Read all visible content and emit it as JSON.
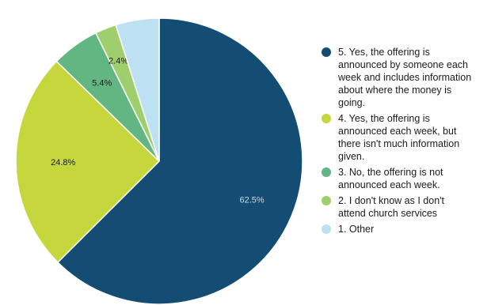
{
  "chart_data": {
    "type": "pie",
    "slices": [
      {
        "label": "5. Yes, the offering is announced by someone each week and includes information about where the money is going.",
        "value": 62.5,
        "display": "62.5%",
        "color": "#134d74",
        "text_color": "#d0d8e2"
      },
      {
        "label": "4. Yes, the offering is announced each week, but there isn't much information given.",
        "value": 24.8,
        "display": "24.8%",
        "color": "#c5d73c",
        "text_color": "#1b1b1b"
      },
      {
        "label": "3. No, the offering is not announced each week.",
        "value": 5.4,
        "display": "5.4%",
        "color": "#62b682",
        "text_color": "#1b1b1b"
      },
      {
        "label": "2. I don't know as I don't attend church services",
        "value": 2.4,
        "display": "2.4%",
        "color": "#9fcf6c",
        "text_color": "#1b1b1b"
      },
      {
        "label": "1. Other",
        "value": 4.9,
        "display": "",
        "color": "#bde0f3",
        "text_color": "#1b1b1b"
      }
    ],
    "start_angle_deg": 0,
    "direction": "clockwise",
    "legend_position": "right"
  },
  "legend": [
    {
      "text": "5. Yes, the offering is\nannounced by someone each\nweek and includes information\nabout where the money is\ngoing.",
      "color": "#134d74"
    },
    {
      "text": "4. Yes, the offering is\nannounced each week, but\nthere isn't much information\ngiven.",
      "color": "#c5d73c"
    },
    {
      "text": "3. No, the offering is not\nannounced each week.",
      "color": "#62b682"
    },
    {
      "text": "2. I don't know as I don't\nattend church services",
      "color": "#9fcf6c"
    },
    {
      "text": "1. Other",
      "color": "#bde0f3"
    }
  ]
}
